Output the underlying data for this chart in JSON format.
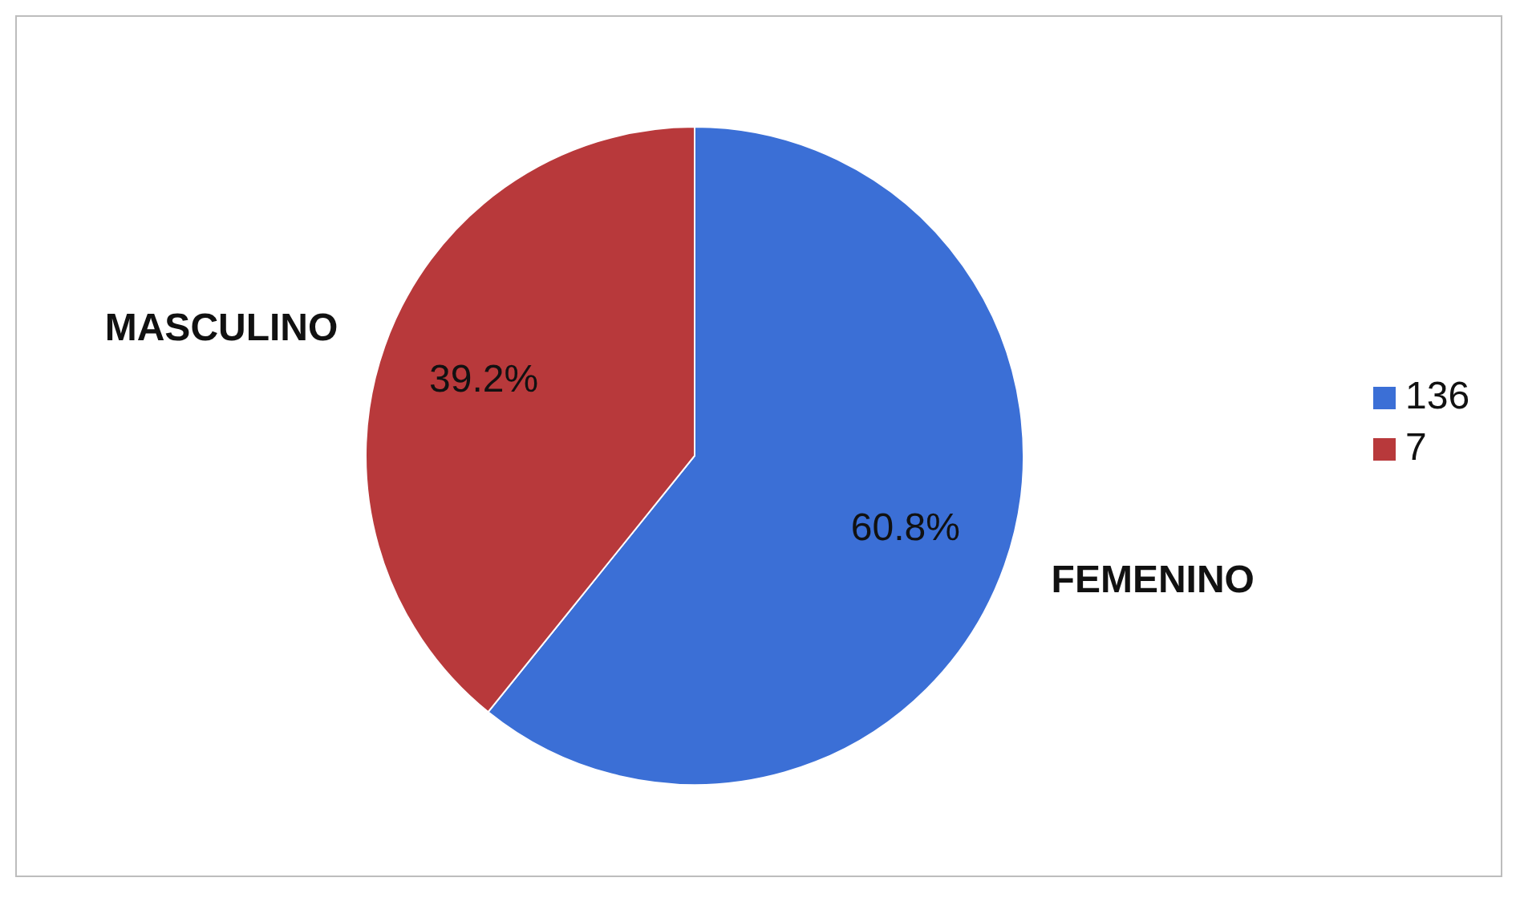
{
  "chart_data": {
    "type": "pie",
    "categories": [
      "136",
      "7"
    ],
    "values": [
      60.8,
      39.2
    ],
    "colors": [
      "#3b6fd6",
      "#b8393b"
    ],
    "value_labels": [
      "60.8%",
      "39.2%"
    ],
    "annotations": [
      "FEMENINO",
      "MASCULINO"
    ],
    "legend": "right"
  }
}
